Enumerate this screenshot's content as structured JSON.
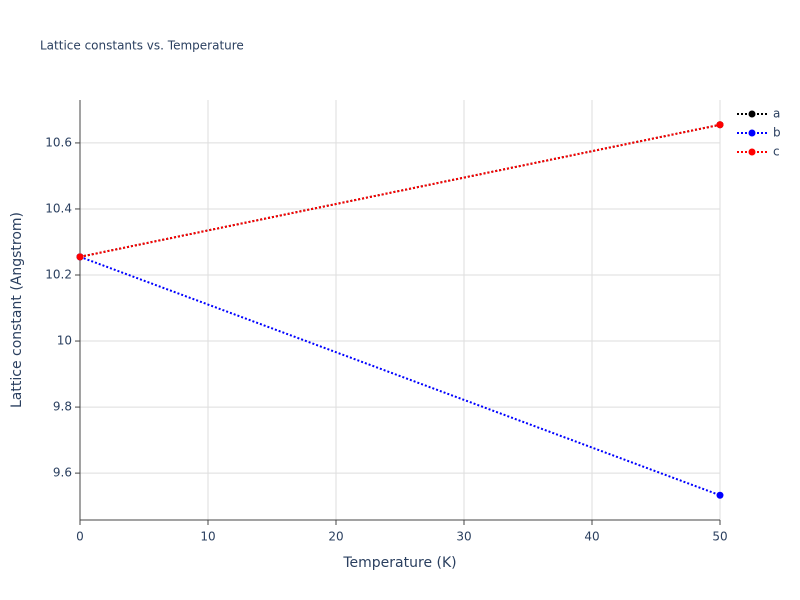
{
  "chart_data": {
    "type": "line",
    "title": "Lattice constants vs. Temperature",
    "x_label": "Temperature (K)",
    "y_label": "Lattice constant (Angstrom)",
    "x": [
      0,
      50
    ],
    "series": [
      {
        "name": "a",
        "color": "#000000",
        "values": [
          10.255,
          10.655
        ]
      },
      {
        "name": "b",
        "color": "#0000ff",
        "values": [
          10.255,
          9.533
        ]
      },
      {
        "name": "c",
        "color": "#ff0000",
        "values": [
          10.255,
          10.655
        ]
      }
    ],
    "xlim": [
      0,
      50
    ],
    "xticks": [
      0,
      10,
      20,
      30,
      40,
      50
    ],
    "ylim": [
      9.458,
      10.73
    ],
    "yticks": [
      9.6,
      9.8,
      10,
      10.2,
      10.4,
      10.6
    ],
    "grid": true,
    "legend": "top-right"
  }
}
